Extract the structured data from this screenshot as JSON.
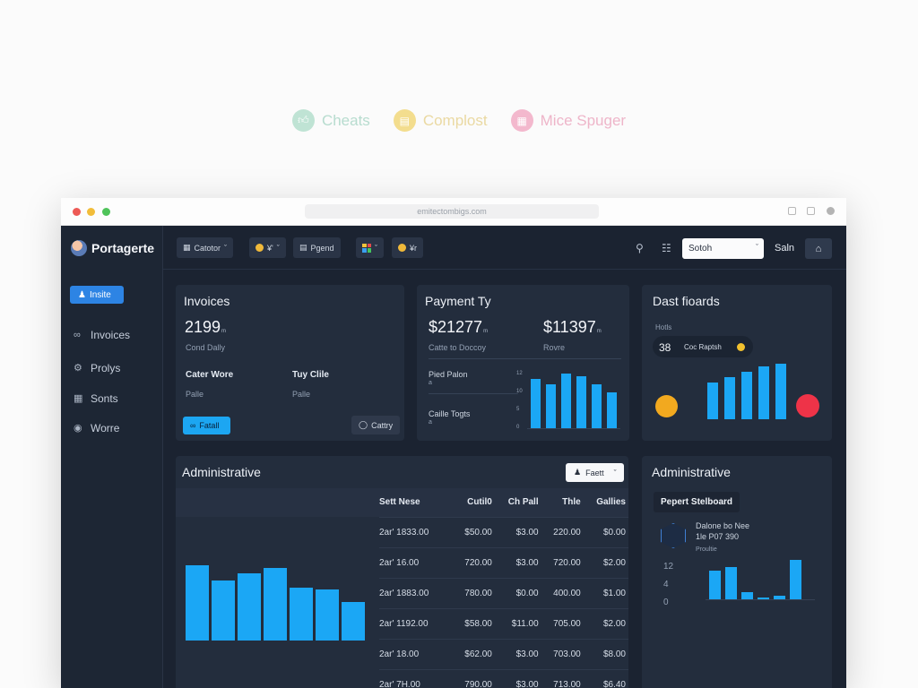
{
  "chips": [
    {
      "label": "Cheats",
      "icon": "thumbs-up-icon"
    },
    {
      "label": "Complost",
      "icon": "document-icon"
    },
    {
      "label": "Mice Spuger",
      "icon": "book-icon"
    }
  ],
  "browser": {
    "url": "emitectombigs.com"
  },
  "brand": {
    "name": "Portagerte"
  },
  "sidebar": {
    "active": "Insite",
    "items": [
      "Invoices",
      "Prolys",
      "Sonts",
      "Worre"
    ]
  },
  "topnav": {
    "buttons": [
      "Catotor",
      "¥'",
      "Pgend",
      "",
      "¥r"
    ],
    "search": "Sotoh",
    "sign": "Saln"
  },
  "invoices": {
    "title": "Invoices",
    "value": "2199",
    "value_suffix": "m",
    "value_caption": "Cond Dally",
    "col1_label": "Cater Wore",
    "col1_sub": "Palle",
    "col2_label": "Tuy Clile",
    "col2_sub": "Palle",
    "primary_btn": "Fatall",
    "secondary_btn": "Cattry"
  },
  "payment": {
    "title": "Payment Ty",
    "value1": "$21277",
    "value1_suffix": "m",
    "value1_caption": "Catte to Doccoy",
    "value2": "$11397",
    "value2_suffix": "m",
    "value2_caption": "Rovre",
    "row1": "Pied Palon",
    "row2": "Caille Togts",
    "row_sub": "a",
    "axis": [
      "12",
      "10",
      "5",
      "0"
    ]
  },
  "dashboards": {
    "title": "Dast fioards",
    "caption": "Hotls",
    "value": "38",
    "badge": "Coc Raptsh"
  },
  "admin": {
    "title": "Administrative",
    "filter": "Faett",
    "columns": [
      "Sett Nese",
      "Cutil0",
      "Ch Pall",
      "Thle",
      "Gallies"
    ],
    "rows": [
      [
        "2ar' 1833.00",
        "$50.00",
        "$3.00",
        "220.00",
        "$0.00"
      ],
      [
        "2ar' 16.00",
        "720.00",
        "$3.00",
        "720.00",
        "$2.00"
      ],
      [
        "2ar' 1883.00",
        "780.00",
        "$0.00",
        "400.00",
        "$1.00"
      ],
      [
        "2ar' 1192.00",
        "$58.00",
        "$11.00",
        "705.00",
        "$2.00"
      ],
      [
        "2ar' 18.00",
        "$62.00",
        "$3.00",
        "703.00",
        "$8.00"
      ],
      [
        "2ar' 7H.00",
        "790.00",
        "$3.00",
        "713.00",
        "$6.40"
      ]
    ]
  },
  "admin2": {
    "title": "Administrative",
    "pill": "Pepert Stelboard",
    "line1": "Dalone bo Nee",
    "line2": "1le P07 390",
    "caption": "Proultie",
    "axis": [
      "12",
      "4",
      "0"
    ]
  },
  "chart_data": [
    {
      "type": "bar",
      "title": "Payment Ty",
      "ylim": [
        0,
        12
      ],
      "values": [
        9,
        8,
        10,
        9.5,
        8,
        6.5
      ]
    },
    {
      "type": "bar",
      "title": "Dast fioards",
      "values": [
        7,
        8,
        9,
        10,
        10.5
      ]
    },
    {
      "type": "bar",
      "title": "Administrative",
      "values": [
        7.8,
        6.2,
        7.0,
        7.5,
        5.5,
        5.3,
        4.0
      ]
    },
    {
      "type": "bar",
      "title": "Administrative",
      "ylim": [
        0,
        12
      ],
      "values": [
        8,
        9,
        2,
        0,
        1,
        11
      ]
    }
  ]
}
